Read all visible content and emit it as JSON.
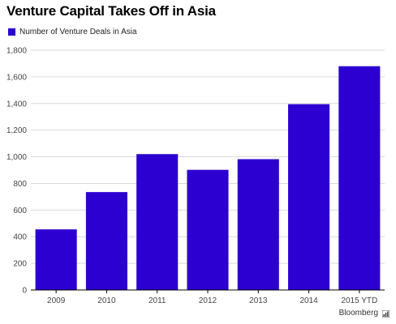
{
  "title": "Venture Capital Takes Off in Asia",
  "source": "Bloomberg",
  "colors": {
    "bar": "#2C00D0",
    "grid": "#d9d9d9",
    "axis": "#000000",
    "tick_text": "#444444"
  },
  "chart_data": {
    "type": "bar",
    "title": "Venture Capital Takes Off in Asia",
    "xlabel": "",
    "ylabel": "",
    "categories": [
      "2009",
      "2010",
      "2011",
      "2012",
      "2013",
      "2014",
      "2015 YTD"
    ],
    "series": [
      {
        "name": "Number of Venture Deals in Asia",
        "values": [
          455,
          735,
          1020,
          902,
          982,
          1395,
          1680
        ]
      }
    ],
    "ylim": [
      0,
      1800
    ],
    "yticks": [
      0,
      200,
      400,
      600,
      800,
      1000,
      1200,
      1400,
      1600,
      1800
    ],
    "ytick_labels": [
      "0",
      "200",
      "400",
      "600",
      "800",
      "1,000",
      "1,200",
      "1,400",
      "1,600",
      "1,800"
    ],
    "grid": true,
    "legend": "top-left"
  }
}
